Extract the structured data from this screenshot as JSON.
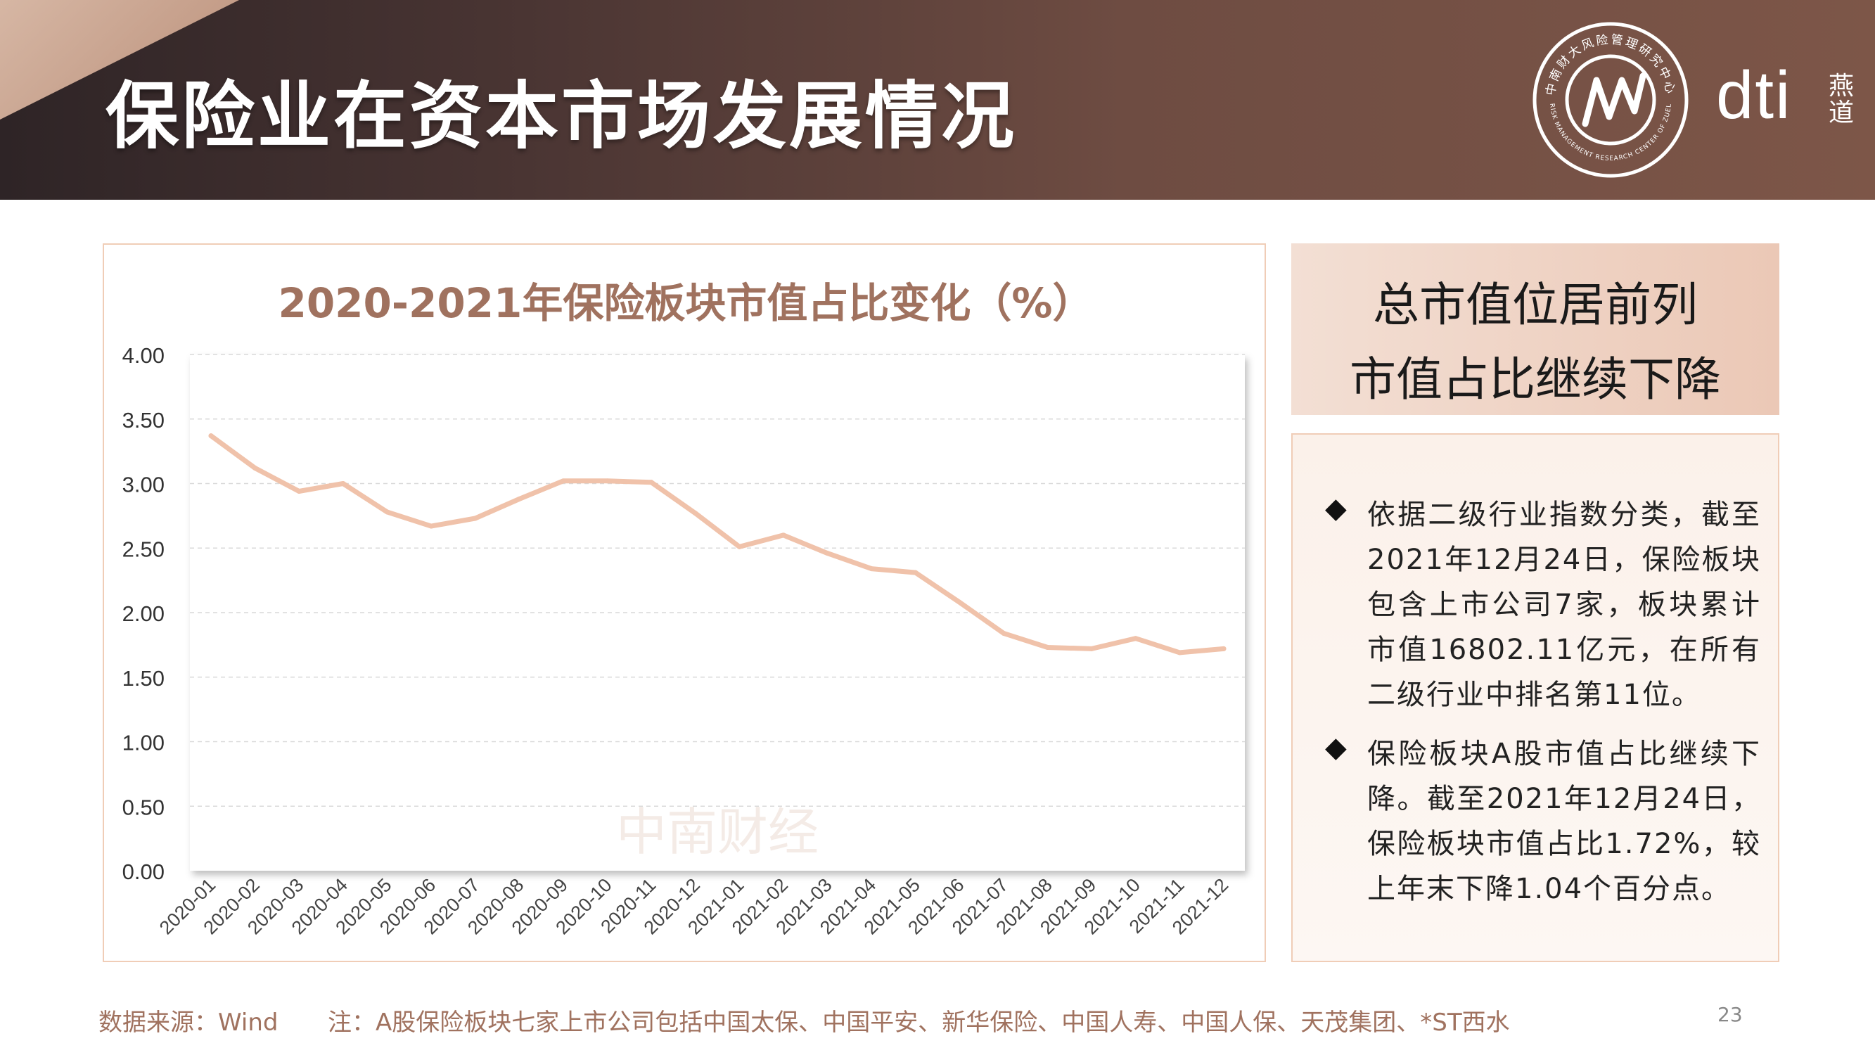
{
  "header": {
    "title": "保险业在资本市场发展情况",
    "brand": "dti",
    "brand_cn": "燕道",
    "seal_text": "中南财大风险管理研究中心",
    "seal_text_en": "RISK MANAGEMENT RESEARCH CENTER OF ZUEL"
  },
  "colors": {
    "header_dark": "#2e2426",
    "header_light": "#7d5648",
    "accent": "#a0725f",
    "line": "#f0c2aa",
    "panel_border": "#f0cdb7"
  },
  "chart_data": {
    "type": "line",
    "title": "2020-2021年保险板块市值占比变化（%）",
    "categories": [
      "2020-01",
      "2020-02",
      "2020-03",
      "2020-04",
      "2020-05",
      "2020-06",
      "2020-07",
      "2020-08",
      "2020-09",
      "2020-10",
      "2020-11",
      "2020-12",
      "2021-01",
      "2021-02",
      "2021-03",
      "2021-04",
      "2021-05",
      "2021-06",
      "2021-07",
      "2021-08",
      "2021-09",
      "2021-10",
      "2021-11",
      "2021-12"
    ],
    "series": [
      {
        "values": [
          3.37,
          3.12,
          2.94,
          3.0,
          2.78,
          2.67,
          2.73,
          2.88,
          3.02,
          3.02,
          3.01,
          2.77,
          2.51,
          2.6,
          2.46,
          2.34,
          2.31,
          2.08,
          1.84,
          1.73,
          1.72,
          1.8,
          1.69,
          1.72
        ]
      }
    ],
    "y_ticks": [
      "4.00",
      "3.50",
      "3.00",
      "2.50",
      "2.00",
      "1.50",
      "1.00",
      "0.50",
      "0.00"
    ],
    "ylim": [
      0,
      4
    ],
    "grid": true,
    "watermark": "中南财经"
  },
  "headline": {
    "line1": "总市值位居前列",
    "line2": "市值占比继续下降"
  },
  "notes": {
    "bullet": "◆",
    "items": [
      "依据二级行业指数分类，截至2021年12月24日，保险板块包含上市公司7家，板块累计市值16802.11亿元，在所有二级行业中排名第11位。",
      "保险板块A股市值占比继续下降。截至2021年12月24日，保险板块市值占比1.72%，较上年末下降1.04个百分点。"
    ]
  },
  "footer": {
    "source": "数据来源：Wind",
    "note": "注：A股保险板块七家上市公司包括中国太保、中国平安、新华保险、中国人寿、中国人保、天茂集团、*ST西水",
    "page": "23"
  }
}
